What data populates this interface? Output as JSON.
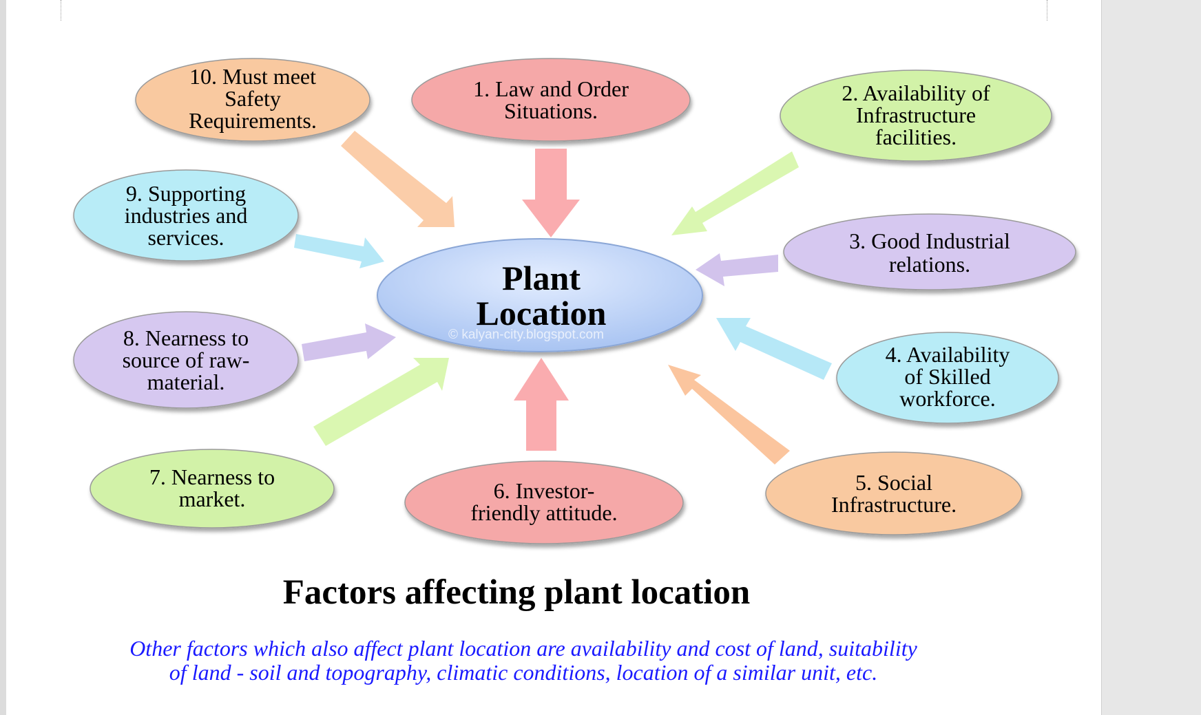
{
  "diagram": {
    "center": {
      "line1": "Plant",
      "line2": "Location"
    },
    "watermark": "© kalyan-city.blogspot.com",
    "factors": [
      {
        "lines": [
          "1. Law and Order",
          "Situations."
        ],
        "fill": "#f5a8a8"
      },
      {
        "lines": [
          "2. Availability of",
          "Infrastructure",
          "facilities."
        ],
        "fill": "#d2f2a8"
      },
      {
        "lines": [
          "3. Good Industrial",
          "relations."
        ],
        "fill": "#d6c8f0"
      },
      {
        "lines": [
          "4. Availability",
          "of Skilled",
          "workforce."
        ],
        "fill": "#b8ecf7"
      },
      {
        "lines": [
          "5. Social",
          "Infrastructure."
        ],
        "fill": "#f9c9a0"
      },
      {
        "lines": [
          "6. Investor-",
          "friendly attitude."
        ],
        "fill": "#f5a8a8"
      },
      {
        "lines": [
          "7. Nearness to",
          "market."
        ],
        "fill": "#d2f2a8"
      },
      {
        "lines": [
          "8. Nearness to",
          "source of raw-",
          "material."
        ],
        "fill": "#d6c8f0"
      },
      {
        "lines": [
          "9. Supporting",
          "industries and",
          "services."
        ],
        "fill": "#b8ecf7"
      },
      {
        "lines": [
          "10. Must meet",
          "Safety",
          "Requirements."
        ],
        "fill": "#f9c9a0"
      }
    ]
  },
  "caption": "Factors affecting plant location",
  "note": {
    "line1": "Other factors which also affect plant location are availability and cost of land, suitability",
    "line2": "of land - soil and topography, climatic conditions, location of a similar unit, etc."
  }
}
